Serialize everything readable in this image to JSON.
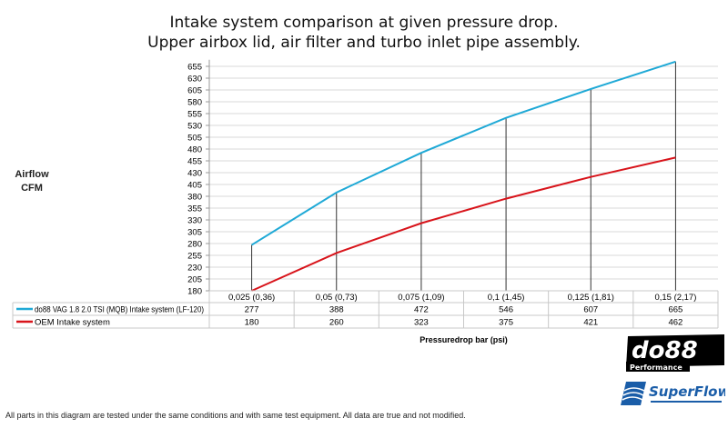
{
  "chart_data": {
    "type": "line",
    "title": [
      "Intake system comparison at given pressure drop.",
      "Upper airbox lid, air filter and turbo inlet pipe assembly."
    ],
    "ylabel": [
      "Airflow",
      "CFM"
    ],
    "xlabel": "Pressuredrop bar (psi)",
    "categories": [
      "0,025 (0,36)",
      "0,05 (0,73)",
      "0,075 (1,09)",
      "0,1 (1,45)",
      "0,125 (1,81)",
      "0,15 (2,17)"
    ],
    "yticks": [
      180,
      205,
      230,
      255,
      280,
      305,
      330,
      355,
      380,
      405,
      430,
      455,
      480,
      505,
      530,
      555,
      580,
      605,
      630,
      655
    ],
    "ylim": [
      180,
      665
    ],
    "grid": true,
    "legend": "data-table",
    "series": [
      {
        "name": "do88 VAG 1.8 2.0 TSI (MQB) Intake system (LF-120)",
        "values": [
          277,
          388,
          472,
          546,
          607,
          665
        ],
        "color": "#1fa9d6"
      },
      {
        "name": "OEM Intake system",
        "values": [
          180,
          260,
          323,
          375,
          421,
          462
        ],
        "color": "#d8141b"
      }
    ]
  },
  "footnote": "All parts in this diagram are tested under the same conditions and with same test equipment. All data are true and not modified.",
  "logos": {
    "do88": "do88 Performance",
    "superflow": "SuperFlow Dynamometers & Flowbenches"
  }
}
